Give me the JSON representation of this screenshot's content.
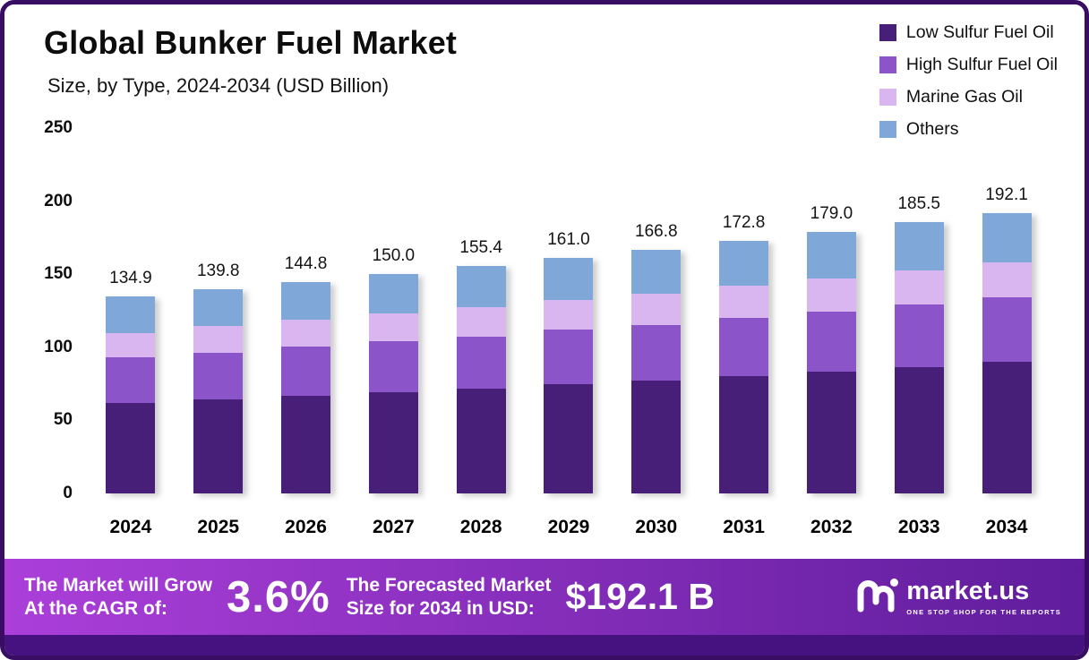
{
  "header": {
    "title": "Global Bunker Fuel Market",
    "subtitle": "Size, by Type, 2024-2034 (USD Billion)"
  },
  "chart_data": {
    "type": "bar",
    "stacked": true,
    "title": "Global Bunker Fuel Market Size, by Type, 2024-2034 (USD Billion)",
    "categories": [
      "2024",
      "2025",
      "2026",
      "2027",
      "2028",
      "2029",
      "2030",
      "2031",
      "2032",
      "2033",
      "2034"
    ],
    "series": [
      {
        "name": "Low Sulfur Fuel Oil",
        "color": "#481f78",
        "values": [
          62.0,
          64.5,
          67.0,
          69.5,
          72.0,
          75.0,
          77.5,
          80.5,
          83.5,
          86.5,
          90.0
        ]
      },
      {
        "name": "High Sulfur Fuel Oil",
        "color": "#8b54c9",
        "values": [
          31.0,
          32.0,
          33.5,
          34.5,
          35.5,
          37.0,
          38.0,
          39.5,
          41.0,
          42.5,
          44.0
        ]
      },
      {
        "name": "Marine Gas Oil",
        "color": "#d9b6ef",
        "values": [
          17.0,
          17.8,
          18.3,
          19.0,
          19.9,
          20.5,
          21.3,
          22.0,
          22.5,
          23.5,
          24.1
        ]
      },
      {
        "name": "Others",
        "color": "#7fa7d8",
        "values": [
          24.9,
          25.5,
          26.0,
          27.0,
          28.0,
          28.5,
          30.0,
          30.8,
          32.0,
          33.0,
          34.0
        ]
      }
    ],
    "totals": [
      134.9,
      139.8,
      144.8,
      150.0,
      155.4,
      161.0,
      166.8,
      172.8,
      179.0,
      185.5,
      192.1
    ],
    "xlabel": "",
    "ylabel": "",
    "ylim": [
      0,
      250
    ],
    "ytick_step": 50,
    "grid": false,
    "legend_position": "top-right"
  },
  "banner": {
    "cagr_label_line1": "The Market will Grow",
    "cagr_label_line2": "At the CAGR of:",
    "cagr_value": "3.6%",
    "forecast_label_line1": "The Forecasted Market",
    "forecast_label_line2": "Size for 2034 in USD:",
    "forecast_value": "$192.1 B",
    "logo_text": "market.us",
    "logo_tagline": "ONE STOP SHOP FOR THE REPORTS"
  },
  "colors": {
    "frame_border": "#380d63",
    "banner_gradient_left": "#ab3fd9",
    "banner_gradient_right": "#5f1d9c",
    "bottom_strip": "#46127f",
    "bar_shadow": "rgba(90,90,90,0.30)"
  }
}
